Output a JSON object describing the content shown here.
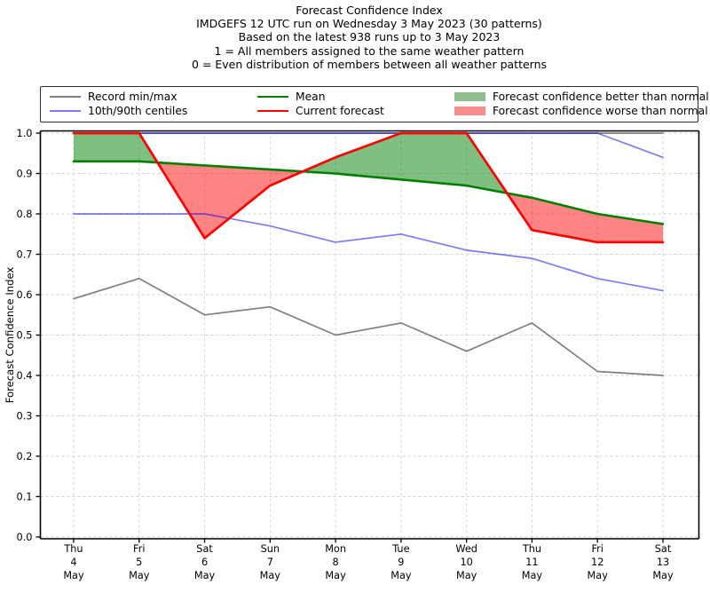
{
  "title": {
    "lines": [
      "Forecast Confidence Index",
      "IMDGEFS 12 UTC run on Wednesday 3 May 2023 (30 patterns)",
      "Based on the latest 938 runs up to 3 May 2023",
      "1 = All members assigned to the same weather pattern",
      "0 = Even distribution of members between all weather patterns"
    ]
  },
  "legend": {
    "items": [
      {
        "key": "record-minmax",
        "label": "Record min/max",
        "swatch": "line",
        "color": "#808080"
      },
      {
        "key": "centiles",
        "label": "10th/90th centiles",
        "swatch": "line",
        "color": "#7b7bf2"
      },
      {
        "key": "mean",
        "label": "Mean",
        "swatch": "line",
        "color": "#008000"
      },
      {
        "key": "current-forecast",
        "label": "Current forecast",
        "swatch": "line",
        "color": "#ff0000"
      },
      {
        "key": "better-than-normal",
        "label": "Forecast confidence better than normal",
        "swatch": "patch",
        "color": "#8fbf8f"
      },
      {
        "key": "worse-than-normal",
        "label": "Forecast confidence worse than normal",
        "swatch": "patch",
        "color": "#f88b8b"
      }
    ]
  },
  "chart_data": {
    "type": "line",
    "title": "Forecast Confidence Index",
    "xlabel": "",
    "ylabel": "Forecast Confidence Index",
    "ylim": [
      0.0,
      1.0
    ],
    "yticks": [
      0.0,
      0.1,
      0.2,
      0.3,
      0.4,
      0.5,
      0.6,
      0.7,
      0.8,
      0.9,
      1.0
    ],
    "grid": true,
    "legend_position": "top",
    "categories": [
      {
        "day": "Thu",
        "date": "4",
        "month": "May"
      },
      {
        "day": "Fri",
        "date": "5",
        "month": "May"
      },
      {
        "day": "Sat",
        "date": "6",
        "month": "May"
      },
      {
        "day": "Sun",
        "date": "7",
        "month": "May"
      },
      {
        "day": "Mon",
        "date": "8",
        "month": "May"
      },
      {
        "day": "Tue",
        "date": "9",
        "month": "May"
      },
      {
        "day": "Wed",
        "date": "10",
        "month": "May"
      },
      {
        "day": "Thu",
        "date": "11",
        "month": "May"
      },
      {
        "day": "Fri",
        "date": "12",
        "month": "May"
      },
      {
        "day": "Sat",
        "date": "13",
        "month": "May"
      }
    ],
    "series": [
      {
        "name": "Record max",
        "key": "record-max",
        "color": "#808080",
        "width": 1.7,
        "values": [
          1.0,
          1.0,
          1.0,
          1.0,
          1.0,
          1.0,
          1.0,
          1.0,
          1.0,
          1.0
        ]
      },
      {
        "name": "Record min",
        "key": "record-min",
        "color": "#808080",
        "width": 1.7,
        "values": [
          0.59,
          0.64,
          0.55,
          0.57,
          0.5,
          0.53,
          0.46,
          0.53,
          0.41,
          0.4
        ]
      },
      {
        "name": "90th centile",
        "key": "centile-90",
        "color": "rgba(15,15,235,0.55)",
        "width": 1.7,
        "values": [
          1.0,
          1.0,
          1.0,
          1.0,
          1.0,
          1.0,
          1.0,
          1.0,
          1.0,
          0.94
        ]
      },
      {
        "name": "10th centile",
        "key": "centile-10",
        "color": "rgba(15,15,235,0.55)",
        "width": 1.7,
        "values": [
          0.8,
          0.8,
          0.8,
          0.77,
          0.73,
          0.75,
          0.71,
          0.69,
          0.64,
          0.61
        ]
      },
      {
        "name": "Mean",
        "key": "mean",
        "color": "#008000",
        "width": 2.6,
        "values": [
          0.93,
          0.93,
          0.92,
          0.91,
          0.9,
          0.885,
          0.87,
          0.84,
          0.8,
          0.775
        ]
      },
      {
        "name": "Current forecast",
        "key": "current-forecast",
        "color": "#ff0000",
        "width": 2.7,
        "values": [
          1.0,
          1.0,
          0.74,
          0.87,
          0.94,
          1.0,
          1.0,
          0.76,
          0.73,
          0.73
        ]
      }
    ],
    "fills": {
      "upper_series": "Current forecast",
      "lower_series": "Mean",
      "above_color": "rgba(0,128,0,0.5)",
      "below_color": "rgba(255,10,10,0.5)",
      "above_meaning": "Forecast confidence better than normal",
      "below_meaning": "Forecast confidence worse than normal"
    }
  }
}
